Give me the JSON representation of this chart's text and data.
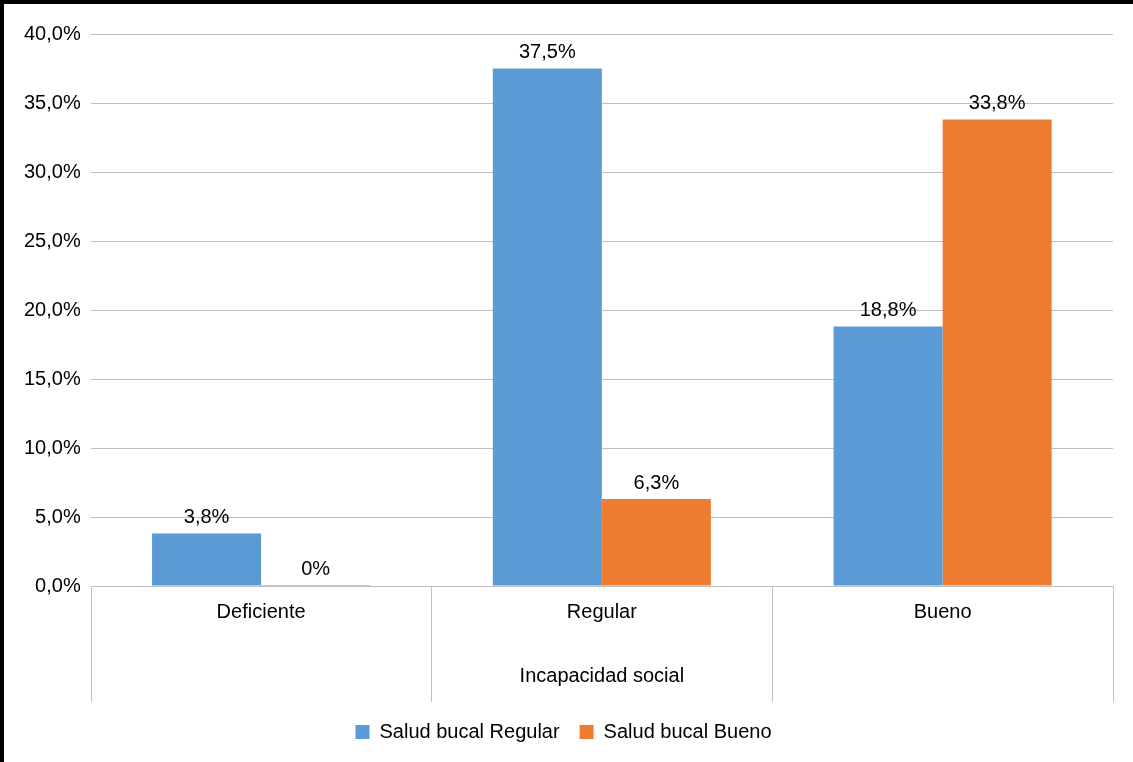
{
  "chart_data": {
    "type": "bar",
    "xlabel": "Incapacidad social",
    "categories": [
      "Deficiente",
      "Regular",
      "Bueno"
    ],
    "series": [
      {
        "name": "Salud bucal Regular",
        "color": "#5b9bd5",
        "values": [
          3.8,
          37.5,
          18.8
        ],
        "value_labels": [
          "3,8%",
          "37,5%",
          "18,8%"
        ]
      },
      {
        "name": "Salud bucal Bueno",
        "color": "#ed7d31",
        "values": [
          0,
          6.3,
          33.8
        ],
        "value_labels": [
          "0%",
          "6,3%",
          "33,8%"
        ]
      }
    ],
    "ylim": [
      0,
      40
    ],
    "yticks": [
      {
        "value": 0,
        "label": "0,0%"
      },
      {
        "value": 5,
        "label": "5,0%"
      },
      {
        "value": 10,
        "label": "10,0%"
      },
      {
        "value": 15,
        "label": "15,0%"
      },
      {
        "value": 20,
        "label": "20,0%"
      },
      {
        "value": 25,
        "label": "25,0%"
      },
      {
        "value": 30,
        "label": "30,0%"
      },
      {
        "value": 35,
        "label": "35,0%"
      },
      {
        "value": 40,
        "label": "40,0%"
      }
    ],
    "grid": "y",
    "legend": "bottom"
  }
}
